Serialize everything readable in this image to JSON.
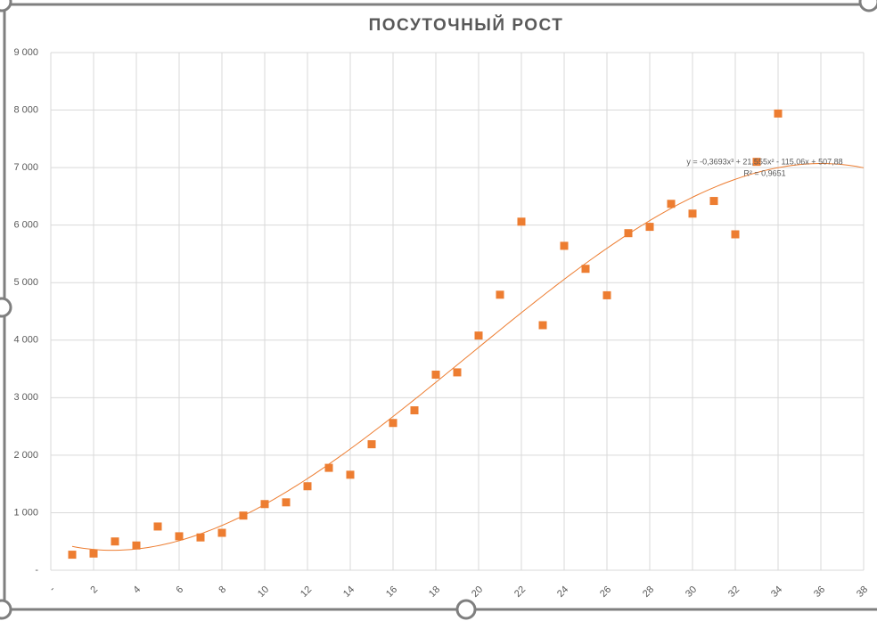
{
  "chart_data": {
    "type": "scatter",
    "title": "ПОСУТОЧНЫЙ РОСТ",
    "series": [
      {
        "color": "#ed7d31",
        "x": [
          1,
          2,
          3,
          4,
          5,
          6,
          7,
          8,
          9,
          10,
          11,
          12,
          13,
          14,
          15,
          16,
          17,
          18,
          19,
          20,
          21,
          22,
          23,
          24,
          25,
          26,
          27,
          28,
          29,
          30,
          31,
          32,
          33,
          34
        ],
        "values": [
          270,
          290,
          500,
          430,
          760,
          590,
          570,
          650,
          950,
          1150,
          1180,
          1460,
          1780,
          1660,
          2190,
          2560,
          2780,
          3400,
          3440,
          4080,
          4790,
          6060,
          4260,
          5640,
          5240,
          4780,
          5860,
          5970,
          6370,
          6200,
          6420,
          5840,
          7100,
          7940
        ]
      }
    ],
    "trendline": {
      "color": "#ed7d31",
      "coefficients": [
        -0.3693,
        21.555,
        -115.06,
        507.88
      ],
      "x_range": [
        1,
        38
      ],
      "equation": "y = -0,3693x³ + 21,555x² - 115,06x + 507,88",
      "r_squared": "R² = 0,9651"
    },
    "xlim": [
      0,
      38
    ],
    "xticks": [
      {
        "value": 0,
        "label": "-"
      },
      2,
      4,
      6,
      8,
      10,
      12,
      14,
      16,
      18,
      20,
      22,
      24,
      26,
      28,
      30,
      32,
      34,
      36,
      38
    ],
    "ylim": [
      0,
      9000
    ],
    "yticks": [
      {
        "value": 0,
        "label": "-"
      },
      {
        "value": 1000,
        "label": "1 000"
      },
      {
        "value": 2000,
        "label": "2 000"
      },
      {
        "value": 3000,
        "label": "3 000"
      },
      {
        "value": 4000,
        "label": "4 000"
      },
      {
        "value": 5000,
        "label": "5 000"
      },
      {
        "value": 6000,
        "label": "6 000"
      },
      {
        "value": 7000,
        "label": "7 000"
      },
      {
        "value": 8000,
        "label": "8 000"
      },
      {
        "value": 9000,
        "label": "9 000"
      }
    ],
    "grid": true
  }
}
